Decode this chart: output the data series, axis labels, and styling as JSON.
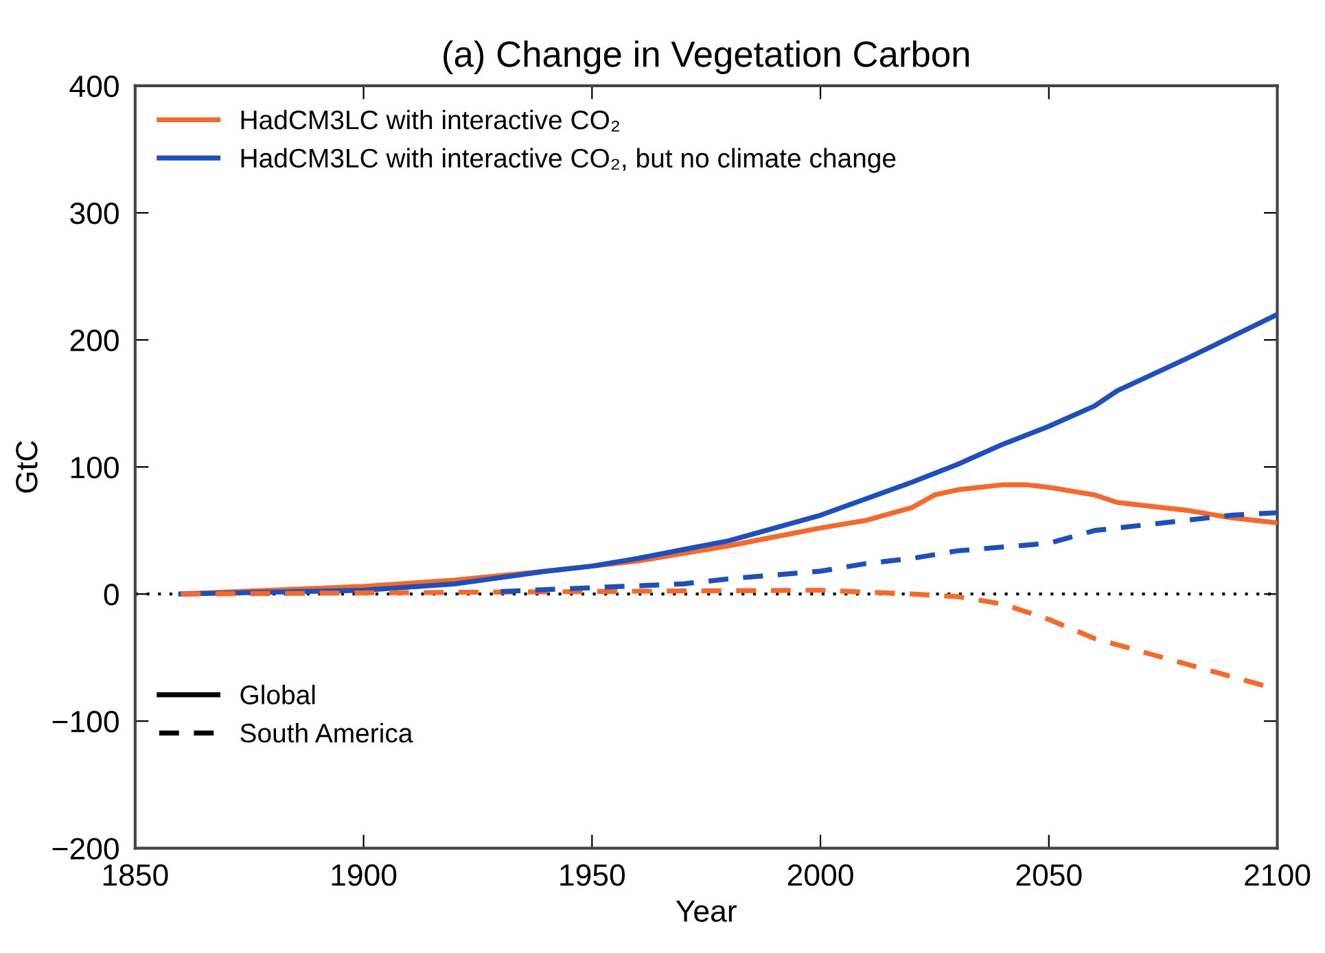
{
  "chart_data": {
    "type": "line",
    "title": "(a) Change in Vegetation Carbon",
    "xlabel": "Year",
    "ylabel": "GtC",
    "xlim": [
      1850,
      2100
    ],
    "xticks": [
      1850,
      1900,
      1950,
      2000,
      2050,
      2100
    ],
    "ylim": [
      -200,
      400
    ],
    "yticks": [
      -200,
      -100,
      0,
      100,
      200,
      300,
      400
    ],
    "legend": "top left",
    "grid": false,
    "ref_lines": [
      {
        "axis": "y",
        "value": 0,
        "color": "#000000",
        "line_style": "dotted"
      }
    ],
    "annotations": [
      "Global",
      "South America"
    ],
    "series": [
      {
        "name": "HadCM3LC with interactive CO₂",
        "color": "#f26a2e",
        "line_style": "solid",
        "x": [
          1860,
          1900,
          1920,
          1940,
          1950,
          1960,
          1970,
          1980,
          1990,
          2000,
          2010,
          2020,
          2025,
          2030,
          2040,
          2045,
          2050,
          2060,
          2065,
          2080,
          2090,
          2100
        ],
        "values": [
          0,
          6,
          11,
          18,
          22,
          26,
          32,
          38,
          45,
          52,
          58,
          68,
          78,
          82,
          86,
          86,
          84,
          78,
          72,
          66,
          60,
          56
        ]
      },
      {
        "name": "HadCM3LC with interactive CO₂, but no climate change",
        "color": "#1f4fb8",
        "line_style": "solid",
        "x": [
          1860,
          1900,
          1920,
          1940,
          1950,
          1960,
          1970,
          1980,
          1990,
          2000,
          2010,
          2020,
          2030,
          2040,
          2050,
          2060,
          2065,
          2080,
          2100
        ],
        "values": [
          0,
          3,
          8,
          18,
          22,
          28,
          35,
          42,
          52,
          62,
          75,
          88,
          102,
          118,
          132,
          148,
          160,
          185,
          220
        ]
      },
      {
        "color": "#f26a2e",
        "line_style": "dashed",
        "x": [
          1860,
          1950,
          2000,
          2020,
          2030,
          2040,
          2050,
          2060,
          2070,
          2080,
          2090,
          2100
        ],
        "values": [
          0,
          2,
          3,
          0,
          -2,
          -8,
          -20,
          -35,
          -45,
          -55,
          -65,
          -75
        ]
      },
      {
        "color": "#1f4fb8",
        "line_style": "dashed",
        "x": [
          1930,
          1950,
          1970,
          1980,
          1990,
          2000,
          2010,
          2020,
          2030,
          2040,
          2050,
          2060,
          2070,
          2080,
          2090,
          2100
        ],
        "values": [
          2,
          5,
          8,
          12,
          15,
          18,
          24,
          28,
          34,
          37,
          40,
          50,
          54,
          58,
          62,
          64
        ]
      }
    ]
  }
}
